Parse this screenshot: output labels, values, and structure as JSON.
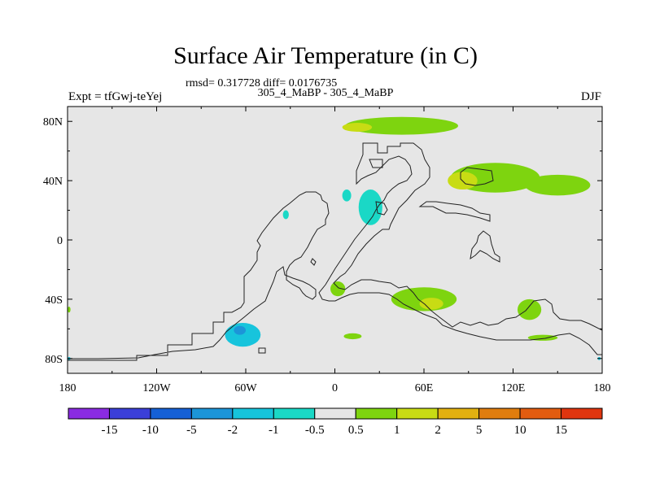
{
  "chart_data": {
    "type": "heatmap",
    "title": "Surface Air Temperature (in C)",
    "stats": "rmsd= 0.317728 diff= 0.0176735",
    "subtitle": "305_4_MaBP - 305_4_MaBP",
    "left_label": "Expt = tfGwj-teYej",
    "right_label": "DJF",
    "x_ticks": [
      {
        "label": "180",
        "value": -180
      },
      {
        "label": "120W",
        "value": -120
      },
      {
        "label": "60W",
        "value": -60
      },
      {
        "label": "0",
        "value": 0
      },
      {
        "label": "60E",
        "value": 60
      },
      {
        "label": "120E",
        "value": 120
      },
      {
        "label": "180",
        "value": 180
      }
    ],
    "y_ticks": [
      {
        "label": "80N",
        "value": 80
      },
      {
        "label": "40N",
        "value": 40
      },
      {
        "label": "0",
        "value": 0
      },
      {
        "label": "40S",
        "value": -40
      },
      {
        "label": "80S",
        "value": -80
      }
    ],
    "xlim": [
      -180,
      180
    ],
    "ylim": [
      -90,
      90
    ],
    "colorbar": {
      "levels": [
        "-15",
        "-10",
        "-5",
        "-2",
        "-1",
        "-0.5",
        "0.5",
        "1",
        "2",
        "5",
        "10",
        "15"
      ],
      "colors": [
        "#8a2be2",
        "#3b3fd8",
        "#1560d6",
        "#1c95d8",
        "#17c4dc",
        "#1ad8c6",
        "#e6e6e6",
        "#7ed40f",
        "#c8dc14",
        "#e2b010",
        "#e07d0e",
        "#e25c10",
        "#e0350f"
      ]
    },
    "regions": [
      {
        "name": "arctic-warm-band",
        "level": "0.5 to 1",
        "color": "#7ed40f",
        "lon": 45,
        "lat": 77,
        "rx": 38,
        "ry": 6
      },
      {
        "name": "arctic-warm-core",
        "level": "1 to 2",
        "color": "#c8dc14",
        "lon": 15,
        "lat": 76,
        "rx": 10,
        "ry": 3
      },
      {
        "name": "asia-warm",
        "level": "0.5 to 1",
        "color": "#7ed40f",
        "lon": 108,
        "lat": 42,
        "rx": 30,
        "ry": 10
      },
      {
        "name": "asia-warm-core",
        "level": "1 to 2",
        "color": "#c8dc14",
        "lon": 86,
        "lat": 40,
        "rx": 10,
        "ry": 6
      },
      {
        "name": "pacific-warm-tongue",
        "level": "0.5 to 1",
        "color": "#7ed40f",
        "lon": 150,
        "lat": 37,
        "rx": 22,
        "ry": 7
      },
      {
        "name": "europe-cool",
        "level": "-1 to -0.5",
        "color": "#1ad8c6",
        "lon": 24,
        "lat": 22,
        "rx": 8,
        "ry": 12
      },
      {
        "name": "europe-cool-2",
        "level": "-1 to -0.5",
        "color": "#1ad8c6",
        "lon": 8,
        "lat": 30,
        "rx": 3,
        "ry": 4
      },
      {
        "name": "sahara-cool",
        "level": "-1 to -0.5",
        "color": "#1ad8c6",
        "lon": -33,
        "lat": 17,
        "rx": 2,
        "ry": 3
      },
      {
        "name": "west-africa-warm",
        "level": "0.5 to 1",
        "color": "#7ed40f",
        "lon": 2,
        "lat": -33,
        "rx": 5,
        "ry": 5
      },
      {
        "name": "southern-africa-warm",
        "level": "0.5 to 1",
        "color": "#7ed40f",
        "lon": 60,
        "lat": -40,
        "rx": 22,
        "ry": 8
      },
      {
        "name": "southern-africa-core",
        "level": "1 to 2",
        "color": "#c8dc14",
        "lon": 65,
        "lat": -43,
        "rx": 8,
        "ry": 4
      },
      {
        "name": "australia-warm",
        "level": "0.5 to 1",
        "color": "#7ed40f",
        "lon": 131,
        "lat": -47,
        "rx": 8,
        "ry": 7
      },
      {
        "name": "south-pacific-warm",
        "level": "0.5 to 1",
        "color": "#7ed40f",
        "lon": 140,
        "lat": -66,
        "rx": 10,
        "ry": 2
      },
      {
        "name": "south-atlantic-warm",
        "level": "0.5 to 1",
        "color": "#7ed40f",
        "lon": 12,
        "lat": -65,
        "rx": 6,
        "ry": 2
      },
      {
        "name": "south-america-cool",
        "level": "-2 to -1",
        "color": "#17c4dc",
        "lon": -62,
        "lat": -64,
        "rx": 12,
        "ry": 8
      },
      {
        "name": "south-america-cool-core",
        "level": "-5 to -2",
        "color": "#1c95d8",
        "lon": -64,
        "lat": -61,
        "rx": 4,
        "ry": 3
      },
      {
        "name": "antarctic-cool-west",
        "level": "-2 to -1",
        "color": "#17c4dc",
        "lon": -179,
        "lat": -80,
        "rx": 1,
        "ry": 1
      },
      {
        "name": "antarctic-cool-east",
        "level": "-2 to -1",
        "color": "#17c4dc",
        "lon": 178,
        "lat": -80,
        "rx": 1,
        "ry": 1
      },
      {
        "name": "east-pacific-warm",
        "level": "0.5 to 1",
        "color": "#7ed40f",
        "lon": -179,
        "lat": -47,
        "rx": 1,
        "ry": 2
      }
    ]
  }
}
